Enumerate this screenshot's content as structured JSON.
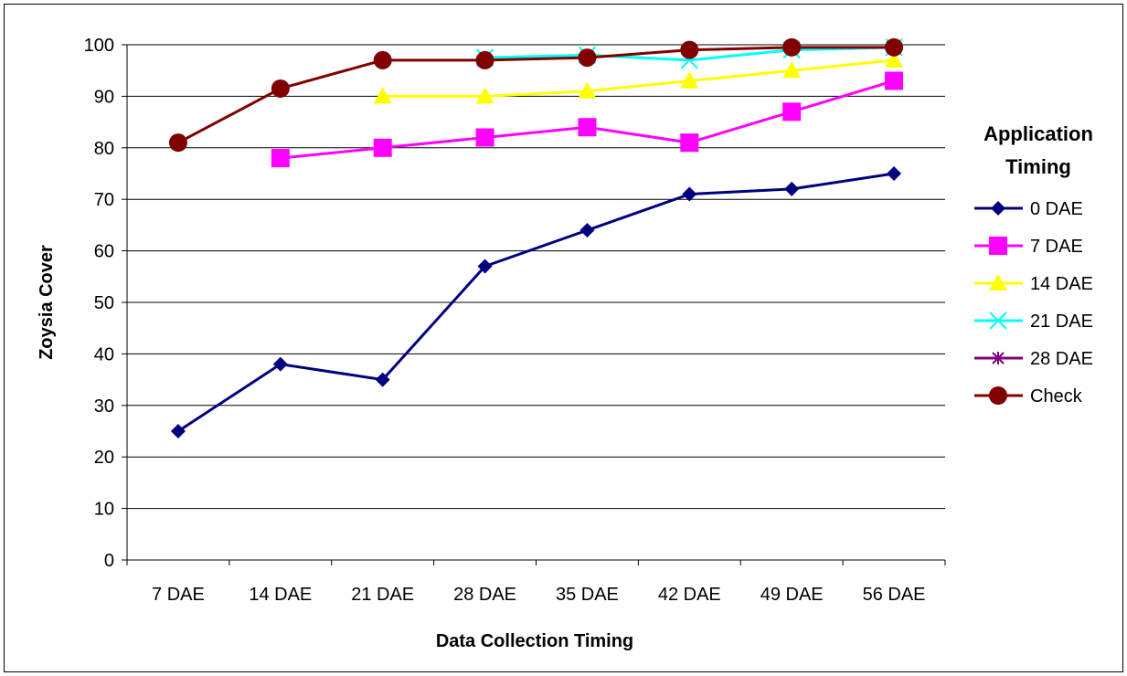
{
  "chart_data": {
    "type": "line",
    "title": "",
    "xlabel": "Data Collection Timing",
    "ylabel": "Zoysia Cover",
    "ylim": [
      0,
      100
    ],
    "yticks": [
      "0",
      "10",
      "20",
      "30",
      "40",
      "50",
      "60",
      "70",
      "80",
      "90",
      "100"
    ],
    "categories": [
      "7 DAE",
      "14 DAE",
      "21 DAE",
      "28 DAE",
      "35 DAE",
      "42 DAE",
      "49 DAE",
      "56 DAE"
    ],
    "grid": "horizontal",
    "legend_position": "right",
    "legend_title": "Application Timing",
    "legend_title_lines": [
      "Application",
      "Timing"
    ],
    "series": [
      {
        "name": "0 DAE",
        "color": "#000080",
        "marker": "diamond",
        "values": [
          25,
          38,
          35,
          57,
          64,
          71,
          72,
          75
        ]
      },
      {
        "name": "7 DAE",
        "color": "#FF00FF",
        "marker": "square",
        "values": [
          null,
          78,
          80,
          82,
          84,
          81,
          87,
          93
        ]
      },
      {
        "name": "14 DAE",
        "color": "#FFFF00",
        "marker": "triangle",
        "values": [
          null,
          null,
          90,
          90,
          91,
          93,
          95,
          97
        ]
      },
      {
        "name": "21 DAE",
        "color": "#00FFFF",
        "marker": "x",
        "values": [
          null,
          null,
          null,
          97.5,
          98,
          97,
          99,
          99.5
        ]
      },
      {
        "name": "28 DAE",
        "color": "#800080",
        "marker": "asterisk",
        "values": [
          null,
          null,
          null,
          null,
          null,
          null,
          null,
          99.5
        ]
      },
      {
        "name": "Check",
        "color": "#800000",
        "marker": "circle",
        "values": [
          81,
          91.5,
          97,
          97,
          97.5,
          99,
          99.5,
          99.5
        ]
      }
    ]
  }
}
